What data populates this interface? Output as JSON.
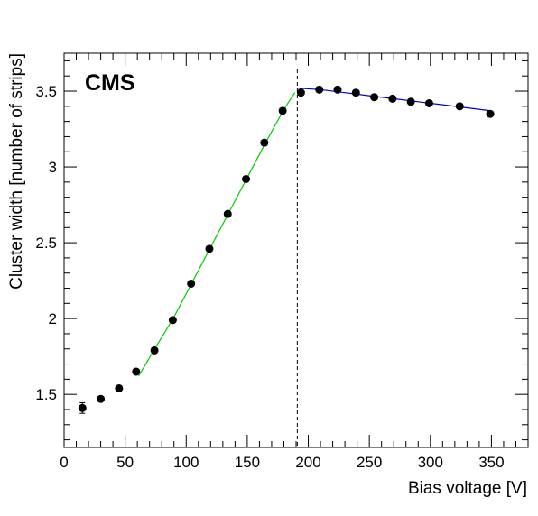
{
  "chart_data": {
    "type": "scatter",
    "experiment_label": "CMS",
    "xlabel": "Bias voltage [V]",
    "ylabel": "Cluster width [number of strips]",
    "xlim": [
      0,
      380
    ],
    "ylim": [
      1.15,
      3.75
    ],
    "x_ticks": [
      0,
      50,
      100,
      150,
      200,
      250,
      300,
      350
    ],
    "y_ticks": [
      1.5,
      2,
      2.5,
      3,
      3.5
    ],
    "x_tick_labels": [
      "0",
      "50",
      "100",
      "150",
      "200",
      "250",
      "300",
      "350"
    ],
    "y_tick_labels": [
      "1.5",
      "2",
      "2.5",
      "3",
      "3.5"
    ],
    "grid": false,
    "series": [
      {
        "marker": "circle",
        "color": "#000000",
        "points": [
          {
            "x": 15,
            "y": 1.41,
            "err": 0.035
          },
          {
            "x": 30,
            "y": 1.47,
            "err": 0.015
          },
          {
            "x": 45,
            "y": 1.54,
            "err": 0.015
          },
          {
            "x": 59,
            "y": 1.65,
            "err": 0.015
          },
          {
            "x": 74,
            "y": 1.79,
            "err": 0.015
          },
          {
            "x": 89,
            "y": 1.99,
            "err": 0.015
          },
          {
            "x": 104,
            "y": 2.23,
            "err": 0.015
          },
          {
            "x": 119,
            "y": 2.46,
            "err": 0.015
          },
          {
            "x": 134,
            "y": 2.69,
            "err": 0.015
          },
          {
            "x": 149,
            "y": 2.92,
            "err": 0.015
          },
          {
            "x": 164,
            "y": 3.16,
            "err": 0.015
          },
          {
            "x": 179,
            "y": 3.37,
            "err": 0.015
          },
          {
            "x": 194,
            "y": 3.49,
            "err": 0.015
          },
          {
            "x": 209,
            "y": 3.51,
            "err": 0.015
          },
          {
            "x": 224,
            "y": 3.51,
            "err": 0.015
          },
          {
            "x": 239,
            "y": 3.49,
            "err": 0.015
          },
          {
            "x": 254,
            "y": 3.46,
            "err": 0.015
          },
          {
            "x": 269,
            "y": 3.45,
            "err": 0.015
          },
          {
            "x": 284,
            "y": 3.43,
            "err": 0.015
          },
          {
            "x": 299,
            "y": 3.42,
            "err": 0.015
          },
          {
            "x": 324,
            "y": 3.4,
            "err": 0.015
          },
          {
            "x": 349,
            "y": 3.35,
            "err": 0.015
          }
        ]
      }
    ],
    "fits": [
      {
        "color": "#00cc00",
        "x": [
          61,
          75,
          90,
          105,
          120,
          135,
          150,
          165,
          180,
          189
        ],
        "y": [
          1.62,
          1.81,
          2.01,
          2.24,
          2.47,
          2.7,
          2.93,
          3.16,
          3.38,
          3.49
        ]
      },
      {
        "color": "#0000cc",
        "x": [
          191,
          210,
          230,
          250,
          270,
          290,
          310,
          330,
          350
        ],
        "y": [
          3.52,
          3.51,
          3.49,
          3.47,
          3.45,
          3.43,
          3.41,
          3.39,
          3.37
        ]
      }
    ],
    "vertical_marker": {
      "x": 191,
      "style": "dashed",
      "color": "#000000"
    }
  }
}
